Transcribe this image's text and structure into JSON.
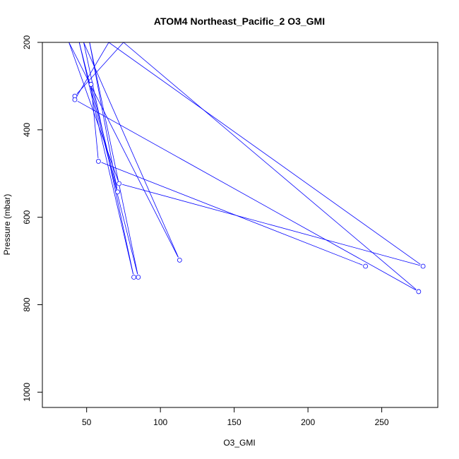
{
  "chart_data": {
    "type": "line",
    "title": "ATOM4 Northeast_Pacific_2 O3_GMI",
    "xlabel": "O3_GMI",
    "ylabel": "Pressure (mbar)",
    "xlim": [
      20,
      288
    ],
    "ylim": [
      1035,
      200
    ],
    "y_reversed": true,
    "grid": false,
    "x_ticks": [
      50,
      100,
      150,
      200,
      250
    ],
    "y_ticks": [
      200,
      400,
      600,
      800,
      1000
    ],
    "line_color": "#0000ff",
    "series": [
      {
        "points": [
          {
            "x": 42,
            "y": 323
          },
          {
            "x": 75,
            "y": 200
          },
          {
            "x": 275,
            "y": 770
          },
          {
            "x": 42,
            "y": 331
          },
          {
            "x": 65,
            "y": 200
          },
          {
            "x": 278,
            "y": 712
          },
          {
            "x": 72,
            "y": 523
          },
          {
            "x": 38,
            "y": 200
          },
          {
            "x": 113,
            "y": 698
          },
          {
            "x": 48,
            "y": 200
          },
          {
            "x": 82,
            "y": 737
          },
          {
            "x": 45,
            "y": 200
          },
          {
            "x": 85,
            "y": 737
          },
          {
            "x": 52,
            "y": 200
          },
          {
            "x": 71,
            "y": 542
          },
          {
            "x": 53,
            "y": 296
          },
          {
            "x": 58,
            "y": 472
          },
          {
            "x": 239,
            "y": 712
          }
        ],
        "markers": [
          {
            "x": 42,
            "y": 323
          },
          {
            "x": 42,
            "y": 331
          },
          {
            "x": 53,
            "y": 296
          },
          {
            "x": 58,
            "y": 472
          },
          {
            "x": 71,
            "y": 542
          },
          {
            "x": 72,
            "y": 523
          },
          {
            "x": 82,
            "y": 737
          },
          {
            "x": 85,
            "y": 737
          },
          {
            "x": 113,
            "y": 698
          },
          {
            "x": 239,
            "y": 712
          },
          {
            "x": 275,
            "y": 770
          },
          {
            "x": 278,
            "y": 712
          }
        ]
      }
    ]
  }
}
